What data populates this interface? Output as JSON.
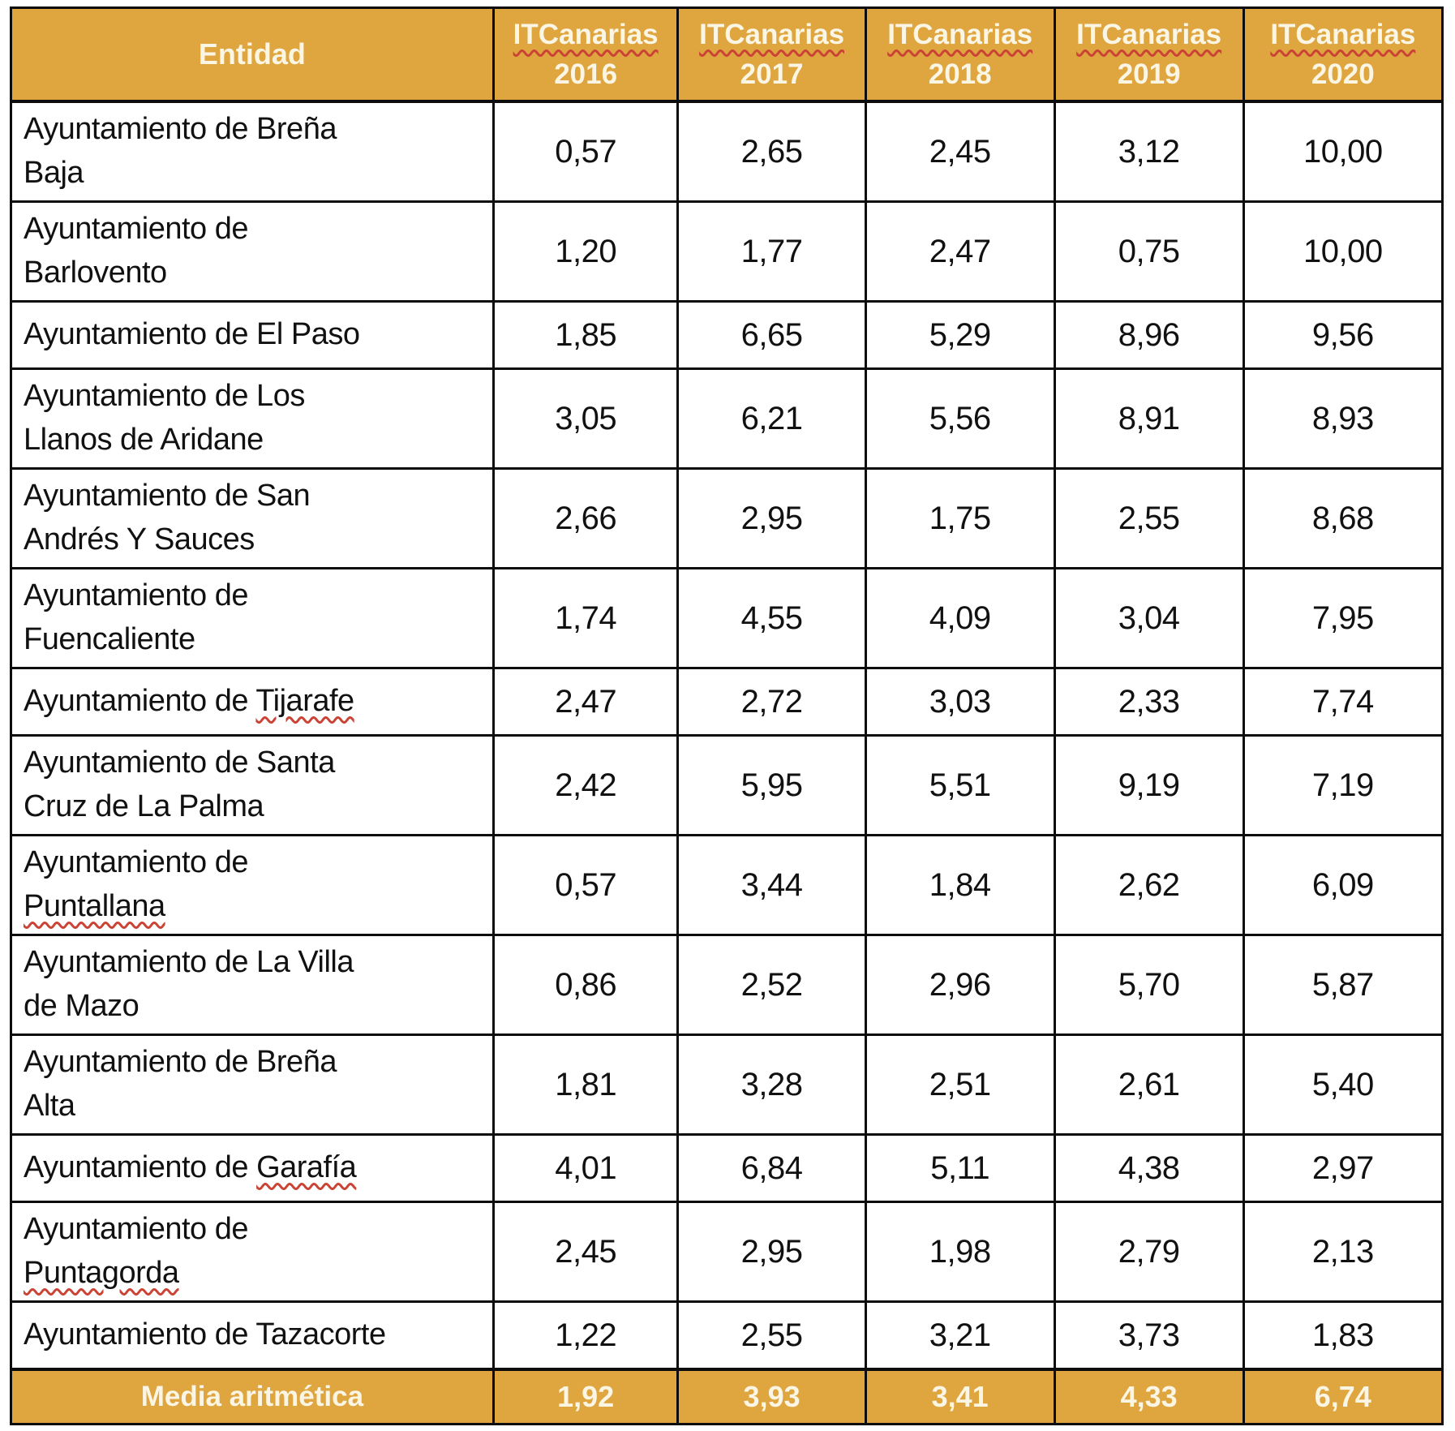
{
  "table": {
    "header": {
      "entity_label": "Entidad",
      "brand": "ITCanarias",
      "years": [
        "2016",
        "2017",
        "2018",
        "2019",
        "2020"
      ]
    },
    "rows": [
      {
        "name": "Ayuntamiento de Breña\nBaja",
        "squiggle_word": null,
        "values": [
          "0,57",
          "2,65",
          "2,45",
          "3,12",
          "10,00"
        ]
      },
      {
        "name": "Ayuntamiento de\nBarlovento",
        "squiggle_word": null,
        "values": [
          "1,20",
          "1,77",
          "2,47",
          "0,75",
          "10,00"
        ]
      },
      {
        "name": "Ayuntamiento de El Paso",
        "squiggle_word": null,
        "values": [
          "1,85",
          "6,65",
          "5,29",
          "8,96",
          "9,56"
        ]
      },
      {
        "name": "Ayuntamiento de Los\nLlanos de Aridane",
        "squiggle_word": null,
        "values": [
          "3,05",
          "6,21",
          "5,56",
          "8,91",
          "8,93"
        ]
      },
      {
        "name": "Ayuntamiento de San\nAndrés Y Sauces",
        "squiggle_word": null,
        "values": [
          "2,66",
          "2,95",
          "1,75",
          "2,55",
          "8,68"
        ]
      },
      {
        "name": "Ayuntamiento de\nFuencaliente",
        "squiggle_word": null,
        "values": [
          "1,74",
          "4,55",
          "4,09",
          "3,04",
          "7,95"
        ]
      },
      {
        "name": "Ayuntamiento de Tijarafe",
        "squiggle_word": "Tijarafe",
        "values": [
          "2,47",
          "2,72",
          "3,03",
          "2,33",
          "7,74"
        ]
      },
      {
        "name": "Ayuntamiento de Santa\nCruz de La Palma",
        "squiggle_word": null,
        "values": [
          "2,42",
          "5,95",
          "5,51",
          "9,19",
          "7,19"
        ]
      },
      {
        "name": "Ayuntamiento de\nPuntallana",
        "squiggle_word": "Puntallana",
        "values": [
          "0,57",
          "3,44",
          "1,84",
          "2,62",
          "6,09"
        ]
      },
      {
        "name": "Ayuntamiento de La Villa\nde Mazo",
        "squiggle_word": null,
        "values": [
          "0,86",
          "2,52",
          "2,96",
          "5,70",
          "5,87"
        ]
      },
      {
        "name": "Ayuntamiento de Breña\nAlta",
        "squiggle_word": null,
        "values": [
          "1,81",
          "3,28",
          "2,51",
          "2,61",
          "5,40"
        ]
      },
      {
        "name": "Ayuntamiento de Garafía",
        "squiggle_word": "Garafía",
        "values": [
          "4,01",
          "6,84",
          "5,11",
          "4,38",
          "2,97"
        ]
      },
      {
        "name": "Ayuntamiento de\nPuntagorda",
        "squiggle_word": "Puntagorda",
        "values": [
          "2,45",
          "2,95",
          "1,98",
          "2,79",
          "2,13"
        ]
      },
      {
        "name": "Ayuntamiento de Tazacorte",
        "squiggle_word": null,
        "values": [
          "1,22",
          "2,55",
          "3,21",
          "3,73",
          "1,83"
        ]
      }
    ],
    "footer": {
      "label": "Media aritmética",
      "values": [
        "1,92",
        "3,93",
        "3,41",
        "4,33",
        "6,74"
      ]
    },
    "colors": {
      "header_bg": "#dfa53f",
      "header_text": "#fbf5e4",
      "border": "#0d0d0d",
      "squiggle": "#cb4335"
    }
  }
}
